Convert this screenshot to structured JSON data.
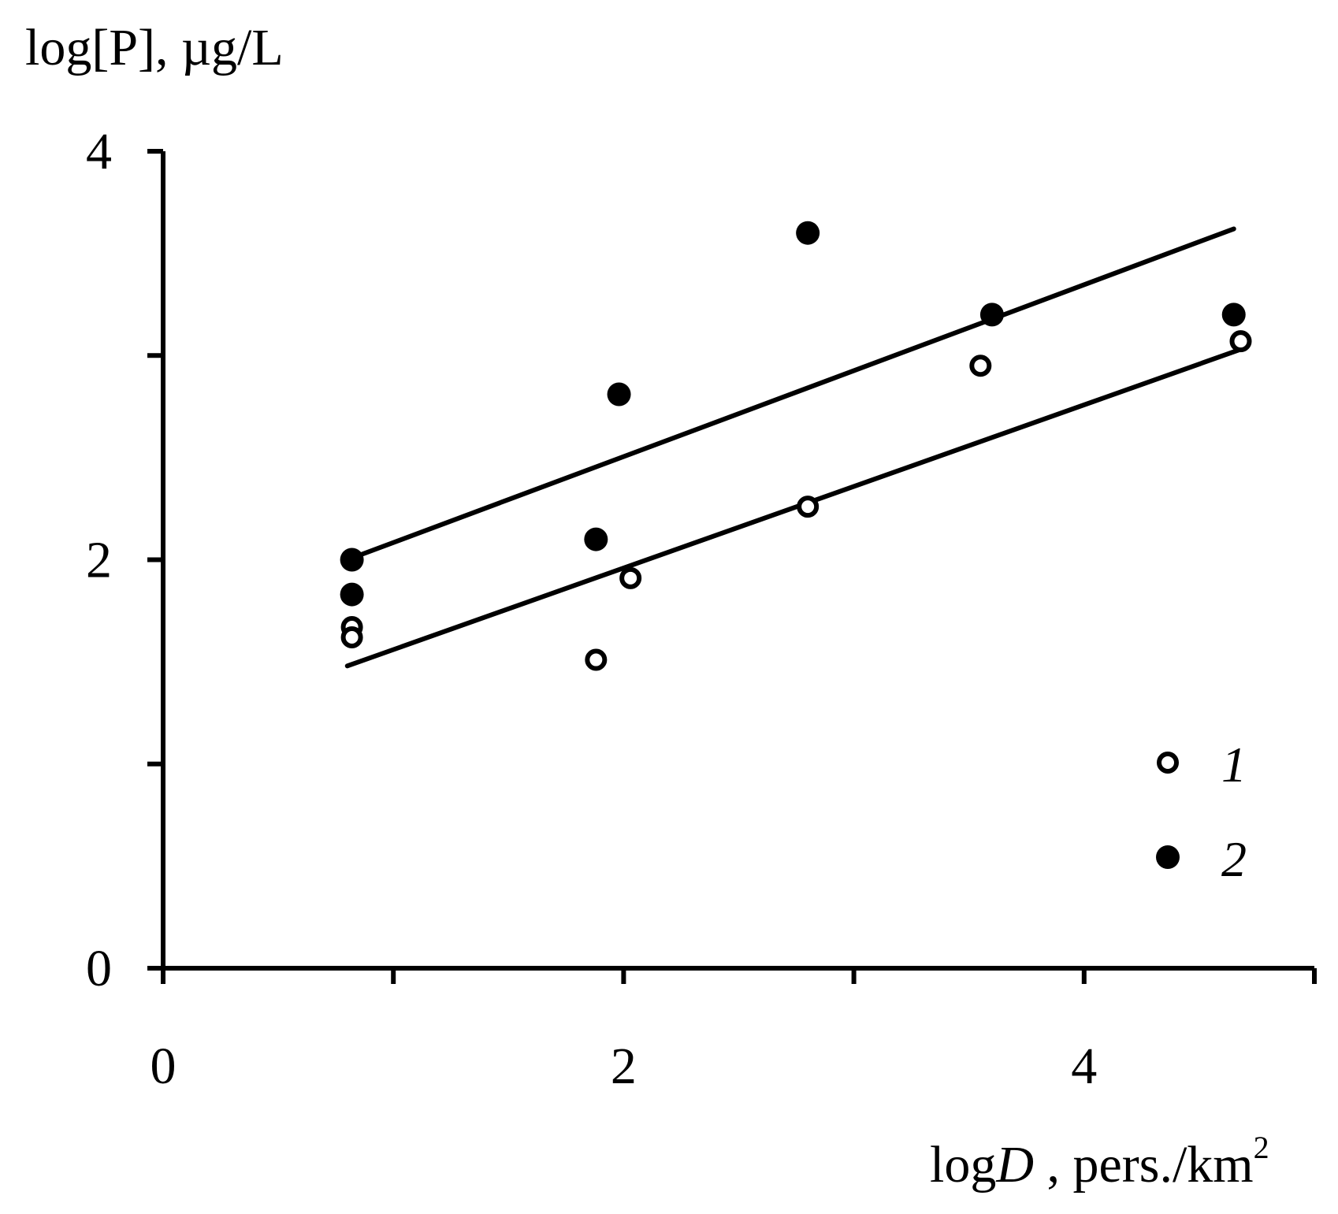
{
  "chart_data": {
    "type": "scatter",
    "title": "",
    "ylabel": "log[P], µg/L",
    "xlabel_prefix": "log",
    "xlabel_var": "D",
    "xlabel_unit": " , pers./km",
    "xlabel_sup": "2",
    "xlim": [
      0,
      5
    ],
    "ylim": [
      0,
      4
    ],
    "x_ticks": [
      0,
      1,
      2,
      3,
      4,
      5
    ],
    "y_ticks": [
      0,
      1,
      2,
      3,
      4
    ],
    "x_tick_labels": [
      {
        "value": 0,
        "label": "0"
      },
      {
        "value": 2,
        "label": "2"
      },
      {
        "value": 4,
        "label": "4"
      }
    ],
    "y_tick_labels": [
      {
        "value": 0,
        "label": "0"
      },
      {
        "value": 2,
        "label": "2"
      },
      {
        "value": 4,
        "label": "4"
      }
    ],
    "legend_position": "bottom-right",
    "series": [
      {
        "name": "1",
        "marker": "open-circle",
        "points": [
          [
            0.82,
            1.67
          ],
          [
            0.82,
            1.62
          ],
          [
            1.88,
            1.51
          ],
          [
            2.03,
            1.91
          ],
          [
            2.8,
            2.26
          ],
          [
            3.55,
            2.95
          ],
          [
            4.68,
            3.07
          ]
        ],
        "fit_line": [
          [
            0.8,
            1.48
          ],
          [
            4.68,
            3.03
          ]
        ]
      },
      {
        "name": "2",
        "marker": "filled-circle",
        "points": [
          [
            0.82,
            2.0
          ],
          [
            0.82,
            1.83
          ],
          [
            1.88,
            2.1
          ],
          [
            1.98,
            2.81
          ],
          [
            2.8,
            3.6
          ],
          [
            3.6,
            3.2
          ],
          [
            4.65,
            3.2
          ]
        ],
        "fit_line": [
          [
            0.8,
            2.0
          ],
          [
            4.65,
            3.62
          ]
        ]
      }
    ]
  }
}
